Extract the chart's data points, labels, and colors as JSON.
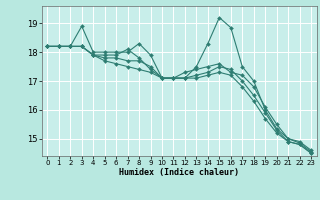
{
  "title": "",
  "xlabel": "Humidex (Indice chaleur)",
  "ylabel": "",
  "background_color": "#b8e8e0",
  "plot_bg_color": "#c8eeea",
  "grid_color": "#ffffff",
  "line_color": "#2e7d72",
  "xlim": [
    -0.5,
    23.5
  ],
  "ylim": [
    14.4,
    19.6
  ],
  "xticks": [
    0,
    1,
    2,
    3,
    4,
    5,
    6,
    7,
    8,
    9,
    10,
    11,
    12,
    13,
    14,
    15,
    16,
    17,
    18,
    19,
    20,
    21,
    22,
    23
  ],
  "yticks": [
    15,
    16,
    17,
    18,
    19
  ],
  "series": [
    [
      18.2,
      18.2,
      18.2,
      18.9,
      18.0,
      18.0,
      18.0,
      18.0,
      18.3,
      17.9,
      17.1,
      17.1,
      17.1,
      17.5,
      18.3,
      19.2,
      18.85,
      17.5,
      17.0,
      16.0,
      15.35,
      15.0,
      14.85,
      14.55
    ],
    [
      18.2,
      18.2,
      18.2,
      18.2,
      17.9,
      17.9,
      17.9,
      18.1,
      17.8,
      17.4,
      17.1,
      17.1,
      17.3,
      17.4,
      17.5,
      17.6,
      17.3,
      17.2,
      16.8,
      16.1,
      15.5,
      15.0,
      14.9,
      14.6
    ],
    [
      18.2,
      18.2,
      18.2,
      18.2,
      17.9,
      17.8,
      17.8,
      17.7,
      17.7,
      17.5,
      17.1,
      17.1,
      17.1,
      17.2,
      17.3,
      17.5,
      17.4,
      17.0,
      16.5,
      15.9,
      15.3,
      14.9,
      14.8,
      14.5
    ],
    [
      18.2,
      18.2,
      18.2,
      18.2,
      17.9,
      17.7,
      17.6,
      17.5,
      17.4,
      17.3,
      17.1,
      17.1,
      17.1,
      17.1,
      17.2,
      17.3,
      17.2,
      16.8,
      16.3,
      15.7,
      15.2,
      14.9,
      14.8,
      14.5
    ]
  ]
}
